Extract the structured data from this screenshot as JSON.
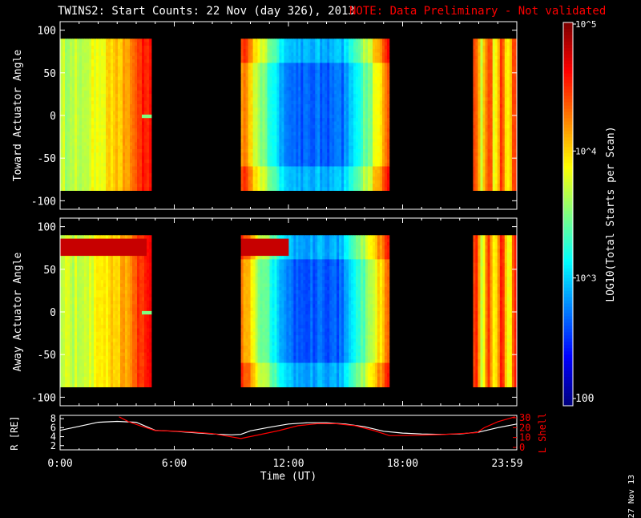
{
  "title": "TWINS2: Start Counts: 22 Nov (day 326), 2013",
  "note": "NOTE: Data Preliminary - Not validated",
  "stamp": "27 Nov 13",
  "colors": {
    "background": "#000000",
    "axis": "#ffffff",
    "note": "#ff0000",
    "lshell": "#ff0000",
    "radius": "#ffffff"
  },
  "chart_data": [
    {
      "type": "heatmap",
      "panel": "toward",
      "ylabel": "Toward Actuator Angle",
      "ylim": [
        -110,
        110
      ],
      "yticks": [
        100,
        50,
        0,
        -50,
        -100
      ],
      "xlim_hours": [
        0,
        24
      ],
      "data_ylim": [
        -88,
        90
      ],
      "data_segments_hours": [
        [
          0,
          4.8
        ],
        [
          9.5,
          17.3
        ],
        [
          21.7,
          24
        ]
      ],
      "rows_with_artifacts": [
        0
      ],
      "colorscale": {
        "label": "LOG10(Total Starts per Scan)",
        "ticks": [
          "10^5",
          "10^4",
          "10^3",
          "100"
        ],
        "range": [
          100,
          100000
        ],
        "log": true
      }
    },
    {
      "type": "heatmap",
      "panel": "away",
      "ylabel": "Away Actuator Angle",
      "ylim": [
        -110,
        110
      ],
      "yticks": [
        100,
        50,
        0,
        -50,
        -100
      ],
      "xlim_hours": [
        0,
        24
      ],
      "data_ylim": [
        -88,
        90
      ],
      "data_segments_hours": [
        [
          0,
          4.8
        ],
        [
          9.5,
          17.3
        ],
        [
          21.7,
          24
        ]
      ]
    },
    {
      "type": "line",
      "panel": "orbit",
      "ylabel": "R [RE]",
      "y2label": "L Shell",
      "yticks": [
        8,
        6,
        4,
        2
      ],
      "y2ticks": [
        30,
        20,
        10,
        0
      ],
      "xlabel": "Time (UT)",
      "xticks": [
        "0:00",
        "6:00",
        "12:00",
        "18:00",
        "23:59"
      ],
      "series": [
        {
          "name": "R",
          "color": "#ffffff",
          "x": [
            0,
            1,
            2,
            3,
            4,
            5,
            6,
            7,
            8,
            9,
            9.5,
            10,
            11,
            12,
            13,
            14,
            15,
            16,
            17,
            18,
            19,
            20,
            21,
            22,
            23,
            24
          ],
          "y": [
            5.4,
            6.3,
            7.2,
            7.4,
            7.2,
            5.4,
            5.2,
            4.9,
            4.6,
            4.4,
            4.5,
            5.3,
            6.1,
            6.8,
            7.1,
            7.1,
            6.8,
            6.2,
            5.2,
            4.8,
            4.6,
            4.5,
            4.6,
            5.0,
            6.0,
            6.8
          ]
        },
        {
          "name": "L Shell",
          "color": "#ff0000",
          "x": [
            3.1,
            3.6,
            4.2,
            5.0,
            6,
            7,
            8,
            9.5,
            10.5,
            11.5,
            12.5,
            13.5,
            14.5,
            15.5,
            16.5,
            17.3,
            18,
            19,
            20,
            21,
            21.9,
            22.3,
            23,
            23.9
          ],
          "y": [
            31,
            26,
            22,
            17,
            16.5,
            15.5,
            14,
            9,
            13,
            17,
            22,
            24,
            24,
            22,
            17,
            12,
            12,
            12.5,
            13,
            14,
            15,
            20,
            26,
            31
          ]
        }
      ]
    }
  ]
}
